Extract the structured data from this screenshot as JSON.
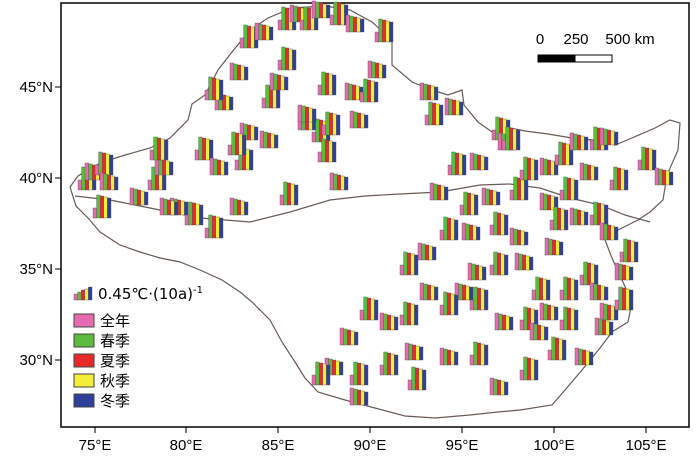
{
  "axes": {
    "x_ticks": [
      "75°E",
      "80°E",
      "85°E",
      "90°E",
      "95°E",
      "100°E",
      "105°E"
    ],
    "y_ticks": [
      "45°N",
      "40°N",
      "35°N",
      "30°N"
    ]
  },
  "scale_bar": {
    "labels": [
      "0",
      "250",
      "500 km"
    ]
  },
  "legend": {
    "reference_label": "0.45℃·(10a)",
    "reference_superscript": "-1",
    "items": [
      {
        "label": "全年",
        "color": "#e66ab0"
      },
      {
        "label": "春季",
        "color": "#5cba3c"
      },
      {
        "label": "夏季",
        "color": "#e82a2a"
      },
      {
        "label": "秋季",
        "color": "#f2ee3a"
      },
      {
        "label": "冬季",
        "color": "#2e3f9a"
      }
    ]
  },
  "colors": {
    "frame": "#000000",
    "region_outline": "#6b5a55",
    "bar_outline": "#555555"
  },
  "stations_note_icon": "bar-glyph-icon"
}
